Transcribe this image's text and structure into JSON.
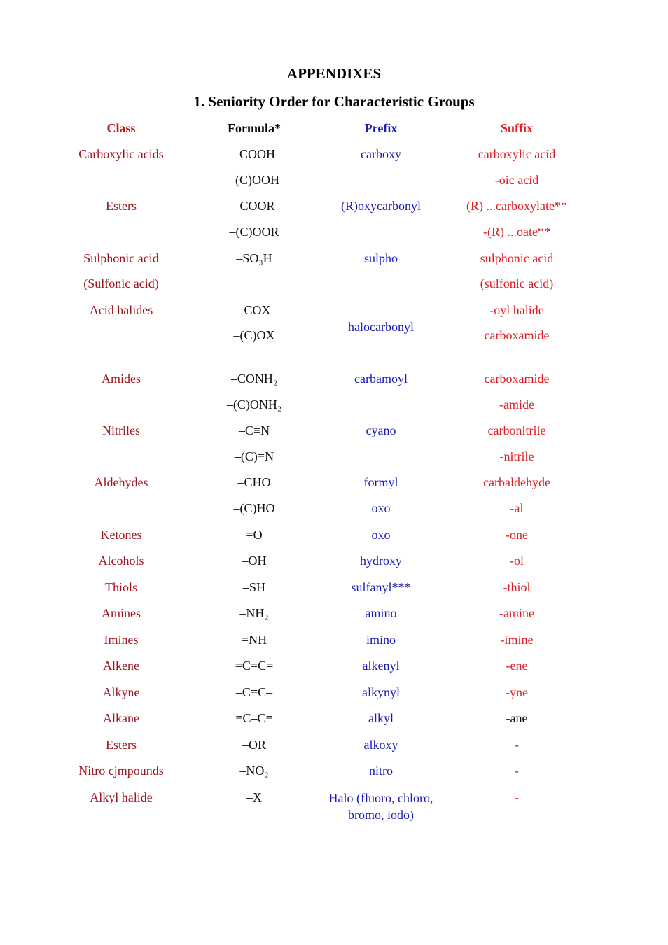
{
  "heading": "APPENDIXES",
  "subheading": "1.  Seniority Order for Characteristic Groups",
  "headers": {
    "class": "Class",
    "formula": "Formula*",
    "prefix": "Prefix",
    "suffix": "Suffix"
  },
  "rows": [
    {
      "class": "Carboxylic acids",
      "formula": "–COOH",
      "prefix": "carboxy",
      "suffix": "carboxylic acid"
    },
    {
      "class": "",
      "formula": "–(C)OOH",
      "prefix": "",
      "suffix": "-oic acid"
    },
    {
      "class": "Esters",
      "formula": "–COOR",
      "prefix": "(R)oxycarbonyl",
      "suffix": "(R) ...carboxylate**"
    },
    {
      "class": "",
      "formula": "–(C)OOR",
      "prefix": "",
      "suffix": "-(R) ...oate**"
    },
    {
      "class": "Sulphonic acid",
      "formula": "–SO₃H",
      "prefix": "sulpho",
      "suffix": "sulphonic acid"
    },
    {
      "class": "(Sulfonic acid)",
      "formula": "",
      "prefix": "",
      "suffix": "(sulfonic acid)"
    },
    {
      "class": "Acid halides",
      "formula": "–COX",
      "prefix": "",
      "suffix": "-oyl halide"
    },
    {
      "class": "",
      "formula": "–(C)OX",
      "prefix": "",
      "suffix": "carboxamide"
    },
    {
      "class": "Amides",
      "formula": "–CONH₂",
      "prefix": "carbamoyl",
      "suffix": "carboxamide"
    },
    {
      "class": "",
      "formula": "–(C)ONH₂",
      "prefix": "",
      "suffix": "-amide"
    },
    {
      "class": "Nitriles",
      "formula": "–C≡N",
      "prefix": "cyano",
      "suffix": "carbonitrile"
    },
    {
      "class": "",
      "formula": "–(C)≡N",
      "prefix": "",
      "suffix": "-nitrile"
    },
    {
      "class": "Aldehydes",
      "formula": "–CHO",
      "prefix": "formyl",
      "suffix": "carbaldehyde"
    },
    {
      "class": "",
      "formula": "–(C)HO",
      "prefix": "oxo",
      "suffix": "-al"
    },
    {
      "class": "Ketones",
      "formula": "=O",
      "prefix": "oxo",
      "suffix": "-one"
    },
    {
      "class": "Alcohols",
      "formula": "–OH",
      "prefix": "hydroxy",
      "suffix": "-ol"
    },
    {
      "class": "Thiols",
      "formula": "–SH",
      "prefix": "sulfanyl***",
      "suffix": "-thiol"
    },
    {
      "class": "Amines",
      "formula": "–NH₂",
      "prefix": "amino",
      "suffix": "-amine"
    },
    {
      "class": "Imines",
      "formula": "=NH",
      "prefix": "imino",
      "suffix": "-imine"
    },
    {
      "class": "Alkene",
      "formula": "=C=C=",
      "prefix": "alkenyl",
      "suffix": "-ene"
    },
    {
      "class": "Alkyne",
      "formula": "–C≡C–",
      "prefix": "alkynyl",
      "suffix": "-yne"
    },
    {
      "class": "Alkane",
      "formula": "≡C–C≡",
      "prefix": "alkyl",
      "suffix": "-ane"
    },
    {
      "class": "Esters",
      "formula": "–OR",
      "prefix": "alkoxy",
      "suffix": "-"
    },
    {
      "class": "Nitro cjmpounds",
      "formula": "–NO₂",
      "prefix": "nitro",
      "suffix": "-"
    },
    {
      "class": "Alkyl halide",
      "formula": "–X",
      "prefix": "Halo (fluoro, chloro, bromo, iodo)",
      "suffix": "-"
    }
  ],
  "acid_halides_prefix": "halocarbonyl",
  "colors": {
    "class": "#a0141e",
    "prefix": "#1c1cb4",
    "suffix": "#e11b22"
  }
}
